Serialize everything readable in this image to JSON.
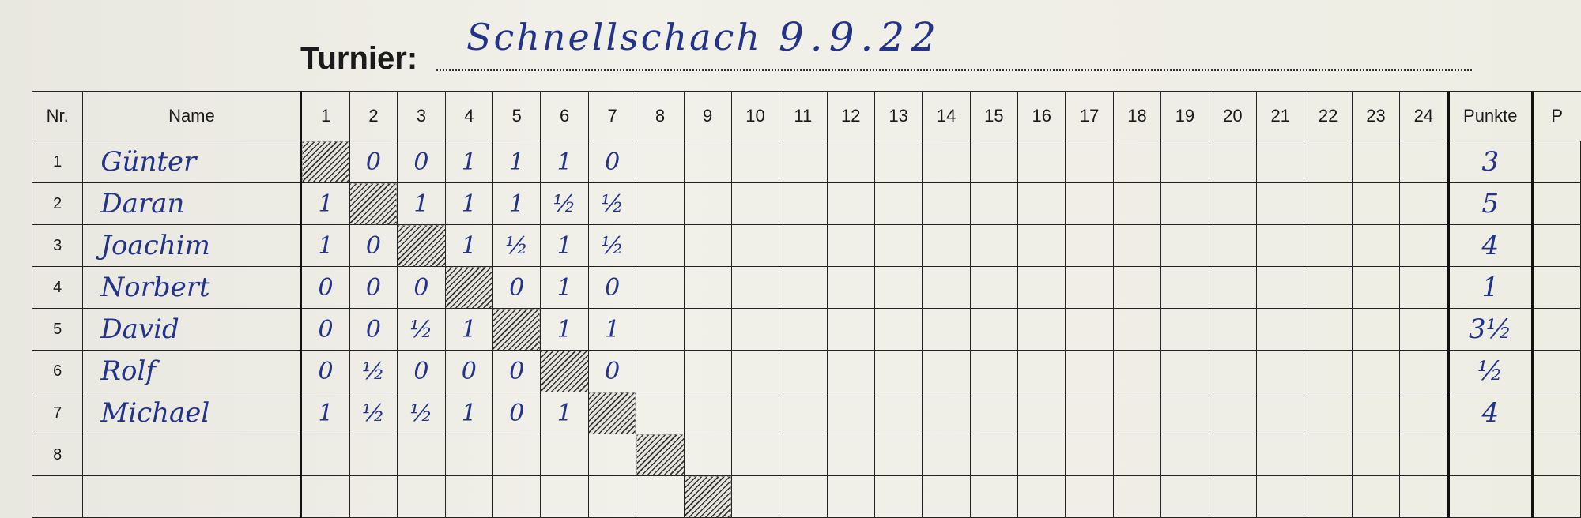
{
  "header": {
    "label": "Turnier:",
    "tournament_name": "Schnellschach",
    "tournament_date": "9.9.22"
  },
  "columns": {
    "nr": "Nr.",
    "name": "Name",
    "rounds": [
      "1",
      "2",
      "3",
      "4",
      "5",
      "6",
      "7",
      "8",
      "9",
      "10",
      "11",
      "12",
      "13",
      "14",
      "15",
      "16",
      "17",
      "18",
      "19",
      "20",
      "21",
      "22",
      "23",
      "24"
    ],
    "points": "Punkte",
    "extra": "P"
  },
  "rows": [
    {
      "nr": "1",
      "name": "Günter",
      "scores": [
        "",
        "0",
        "0",
        "1",
        "1",
        "1",
        "0"
      ],
      "points": "3"
    },
    {
      "nr": "2",
      "name": "Daran",
      "scores": [
        "1",
        "",
        "1",
        "1",
        "1",
        "½",
        "½"
      ],
      "points": "5"
    },
    {
      "nr": "3",
      "name": "Joachim",
      "scores": [
        "1",
        "0",
        "",
        "1",
        "½",
        "1",
        "½"
      ],
      "points": "4"
    },
    {
      "nr": "4",
      "name": "Norbert",
      "scores": [
        "0",
        "0",
        "0",
        "",
        "0",
        "1",
        "0"
      ],
      "points": "1"
    },
    {
      "nr": "5",
      "name": "David",
      "scores": [
        "0",
        "0",
        "½",
        "1",
        "",
        "1",
        "1"
      ],
      "points": "3½"
    },
    {
      "nr": "6",
      "name": "Rolf",
      "scores": [
        "0",
        "½",
        "0",
        "0",
        "0",
        "",
        "0"
      ],
      "points": "½"
    },
    {
      "nr": "7",
      "name": "Michael",
      "scores": [
        "1",
        "½",
        "½",
        "1",
        "0",
        "1",
        ""
      ],
      "points": "4"
    },
    {
      "nr": "8",
      "name": "",
      "scores": [],
      "points": ""
    },
    {
      "nr": "",
      "name": "",
      "scores": [],
      "points": ""
    }
  ],
  "colors": {
    "ink": "#23338a",
    "paper": "#efeee6",
    "grid": "#222222"
  }
}
